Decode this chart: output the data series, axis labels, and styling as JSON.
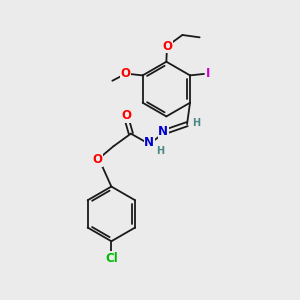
{
  "bg_color": "#ebebeb",
  "bond_color": "#1a1a1a",
  "atom_colors": {
    "O": "#ff0000",
    "N": "#0000cc",
    "Cl": "#00bb00",
    "I": "#cc00cc",
    "H": "#4a8888",
    "C": "#1a1a1a"
  },
  "lw": 1.3,
  "fs": 8.5,
  "fs2": 7.0,
  "r": 0.92
}
